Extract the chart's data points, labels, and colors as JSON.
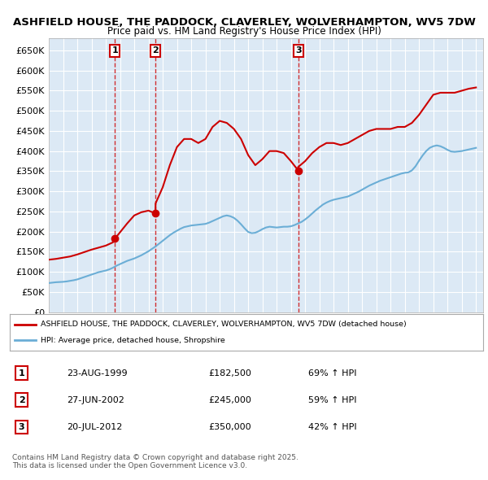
{
  "title1": "ASHFIELD HOUSE, THE PADDOCK, CLAVERLEY, WOLVERHAMPTON, WV5 7DW",
  "title2": "Price paid vs. HM Land Registry's House Price Index (HPI)",
  "legend_label1": "ASHFIELD HOUSE, THE PADDOCK, CLAVERLEY, WOLVERHAMPTON, WV5 7DW (detached house)",
  "legend_label2": "HPI: Average price, detached house, Shropshire",
  "footer": "Contains HM Land Registry data © Crown copyright and database right 2025.\nThis data is licensed under the Open Government Licence v3.0.",
  "sale_markers": [
    {
      "label": "1",
      "date_num": 1999.644,
      "price": 182500,
      "text": "23-AUG-1999",
      "price_text": "£182,500",
      "hpi_text": "69% ↑ HPI"
    },
    {
      "label": "2",
      "date_num": 2002.486,
      "price": 245000,
      "text": "27-JUN-2002",
      "price_text": "£245,000",
      "hpi_text": "59% ↑ HPI"
    },
    {
      "label": "3",
      "date_num": 2012.553,
      "price": 350000,
      "text": "20-JUL-2012",
      "price_text": "£350,000",
      "hpi_text": "42% ↑ HPI"
    }
  ],
  "hpi_line_color": "#6baed6",
  "price_line_color": "#cc0000",
  "bg_color": "#ffffff",
  "plot_bg_color": "#dce9f5",
  "grid_color": "#ffffff",
  "ylim": [
    0,
    680000
  ],
  "yticks": [
    0,
    50000,
    100000,
    150000,
    200000,
    250000,
    300000,
    350000,
    400000,
    450000,
    500000,
    550000,
    600000,
    650000
  ],
  "xlim_start": 1995.0,
  "xlim_end": 2025.5,
  "hpi_data": {
    "years": [
      1995.0,
      1995.25,
      1995.5,
      1995.75,
      1996.0,
      1996.25,
      1996.5,
      1996.75,
      1997.0,
      1997.25,
      1997.5,
      1997.75,
      1998.0,
      1998.25,
      1998.5,
      1998.75,
      1999.0,
      1999.25,
      1999.5,
      1999.75,
      2000.0,
      2000.25,
      2000.5,
      2000.75,
      2001.0,
      2001.25,
      2001.5,
      2001.75,
      2002.0,
      2002.25,
      2002.5,
      2002.75,
      2003.0,
      2003.25,
      2003.5,
      2003.75,
      2004.0,
      2004.25,
      2004.5,
      2004.75,
      2005.0,
      2005.25,
      2005.5,
      2005.75,
      2006.0,
      2006.25,
      2006.5,
      2006.75,
      2007.0,
      2007.25,
      2007.5,
      2007.75,
      2008.0,
      2008.25,
      2008.5,
      2008.75,
      2009.0,
      2009.25,
      2009.5,
      2009.75,
      2010.0,
      2010.25,
      2010.5,
      2010.75,
      2011.0,
      2011.25,
      2011.5,
      2011.75,
      2012.0,
      2012.25,
      2012.5,
      2012.75,
      2013.0,
      2013.25,
      2013.5,
      2013.75,
      2014.0,
      2014.25,
      2014.5,
      2014.75,
      2015.0,
      2015.25,
      2015.5,
      2015.75,
      2016.0,
      2016.25,
      2016.5,
      2016.75,
      2017.0,
      2017.25,
      2017.5,
      2017.75,
      2018.0,
      2018.25,
      2018.5,
      2018.75,
      2019.0,
      2019.25,
      2019.5,
      2019.75,
      2020.0,
      2020.25,
      2020.5,
      2020.75,
      2021.0,
      2021.25,
      2021.5,
      2021.75,
      2022.0,
      2022.25,
      2022.5,
      2022.75,
      2023.0,
      2023.25,
      2023.5,
      2023.75,
      2024.0,
      2024.25,
      2024.5,
      2024.75,
      2025.0
    ],
    "values": [
      72000,
      73000,
      74000,
      74500,
      75000,
      76000,
      77500,
      79000,
      81000,
      84000,
      87000,
      90000,
      93000,
      96000,
      99000,
      101000,
      103000,
      106000,
      110000,
      115000,
      119000,
      123000,
      127000,
      130000,
      133000,
      137000,
      141000,
      146000,
      151000,
      157000,
      163000,
      170000,
      177000,
      184000,
      191000,
      197000,
      202000,
      207000,
      211000,
      213000,
      215000,
      216000,
      217000,
      218000,
      219000,
      222000,
      226000,
      230000,
      234000,
      238000,
      240000,
      238000,
      234000,
      227000,
      218000,
      208000,
      199000,
      196000,
      197000,
      201000,
      206000,
      210000,
      212000,
      211000,
      210000,
      211000,
      212000,
      212000,
      213000,
      216000,
      220000,
      224000,
      230000,
      237000,
      245000,
      253000,
      260000,
      267000,
      272000,
      276000,
      279000,
      281000,
      283000,
      285000,
      287000,
      291000,
      295000,
      299000,
      304000,
      309000,
      314000,
      318000,
      322000,
      326000,
      329000,
      332000,
      335000,
      338000,
      341000,
      344000,
      346000,
      347000,
      352000,
      362000,
      376000,
      389000,
      400000,
      408000,
      412000,
      414000,
      412000,
      408000,
      403000,
      399000,
      398000,
      399000,
      400000,
      402000,
      404000,
      406000,
      408000
    ]
  },
  "price_data": {
    "years": [
      1995.0,
      1995.5,
      1996.0,
      1996.5,
      1997.0,
      1997.5,
      1998.0,
      1998.5,
      1999.0,
      1999.5,
      1999.644,
      2000.0,
      2000.5,
      2001.0,
      2001.5,
      2002.0,
      2002.486,
      2002.5,
      2003.0,
      2003.5,
      2004.0,
      2004.5,
      2005.0,
      2005.5,
      2006.0,
      2006.5,
      2007.0,
      2007.5,
      2008.0,
      2008.5,
      2009.0,
      2009.5,
      2010.0,
      2010.5,
      2011.0,
      2011.5,
      2012.0,
      2012.553,
      2012.5,
      2013.0,
      2013.5,
      2014.0,
      2014.5,
      2015.0,
      2015.5,
      2016.0,
      2016.5,
      2017.0,
      2017.5,
      2018.0,
      2018.5,
      2019.0,
      2019.5,
      2020.0,
      2020.5,
      2021.0,
      2021.5,
      2022.0,
      2022.5,
      2023.0,
      2023.5,
      2024.0,
      2024.5,
      2025.0
    ],
    "values": [
      130000,
      132000,
      135000,
      138000,
      143000,
      149000,
      155000,
      160000,
      165000,
      173000,
      182500,
      198000,
      220000,
      240000,
      248000,
      252000,
      245000,
      270000,
      310000,
      365000,
      410000,
      430000,
      430000,
      420000,
      430000,
      460000,
      475000,
      470000,
      455000,
      430000,
      390000,
      365000,
      380000,
      400000,
      400000,
      395000,
      375000,
      350000,
      360000,
      375000,
      395000,
      410000,
      420000,
      420000,
      415000,
      420000,
      430000,
      440000,
      450000,
      455000,
      455000,
      455000,
      460000,
      460000,
      470000,
      490000,
      515000,
      540000,
      545000,
      545000,
      545000,
      550000,
      555000,
      558000
    ]
  }
}
